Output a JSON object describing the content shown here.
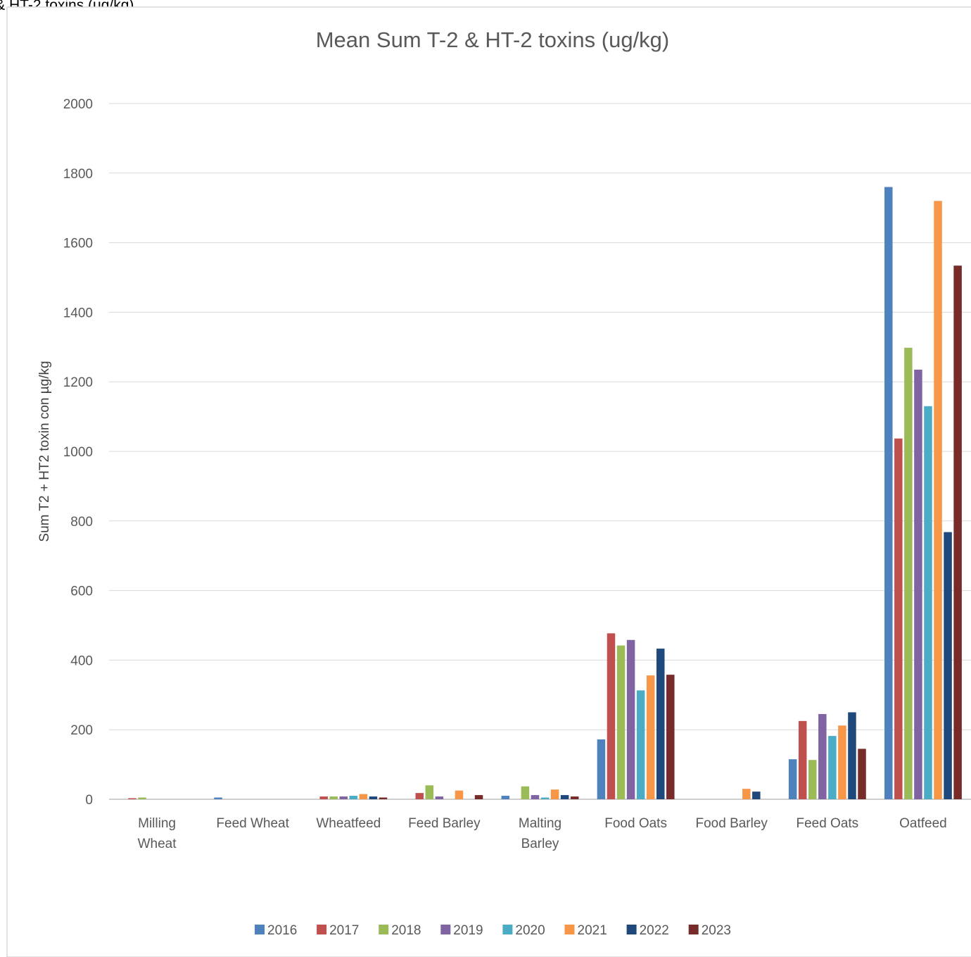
{
  "page": {
    "caption": "Mean Sum T-2 & HT-2 toxins (ug/kg)"
  },
  "chart_data": {
    "type": "bar",
    "title": "Mean Sum T-2 & HT-2 toxins (ug/kg)",
    "xlabel": "",
    "ylabel": "Sum T2 + HT2 toxin con µg/kg",
    "ylim": [
      0,
      2000
    ],
    "yticks": [
      0,
      200,
      400,
      600,
      800,
      1000,
      1200,
      1400,
      1600,
      1800,
      2000
    ],
    "grid": true,
    "legend_position": "bottom",
    "categories": [
      [
        "Milling",
        "Wheat"
      ],
      [
        "Feed Wheat"
      ],
      [
        "Wheatfeed"
      ],
      [
        "Feed Barley"
      ],
      [
        "Malting",
        "Barley"
      ],
      [
        "Food Oats"
      ],
      [
        "Food Barley"
      ],
      [
        "Feed Oats"
      ],
      [
        "Oatfeed"
      ]
    ],
    "series": [
      {
        "name": "2016",
        "color": "#4F81BD",
        "values": [
          0,
          5,
          0,
          0,
          10,
          172,
          0,
          115,
          1760
        ]
      },
      {
        "name": "2017",
        "color": "#C0504D",
        "values": [
          3,
          0,
          8,
          18,
          0,
          477,
          0,
          225,
          1037
        ]
      },
      {
        "name": "2018",
        "color": "#9BBB59",
        "values": [
          5,
          0,
          8,
          40,
          37,
          442,
          0,
          113,
          1298
        ]
      },
      {
        "name": "2019",
        "color": "#8064A2",
        "values": [
          0,
          0,
          8,
          8,
          12,
          458,
          0,
          245,
          1235
        ]
      },
      {
        "name": "2020",
        "color": "#4BACC6",
        "values": [
          0,
          0,
          10,
          0,
          5,
          313,
          0,
          182,
          1130
        ]
      },
      {
        "name": "2021",
        "color": "#F79646",
        "values": [
          0,
          0,
          15,
          25,
          28,
          356,
          30,
          212,
          1720
        ]
      },
      {
        "name": "2022",
        "color": "#1F497D",
        "values": [
          0,
          0,
          8,
          0,
          12,
          433,
          22,
          250,
          768
        ]
      },
      {
        "name": "2023",
        "color": "#772C2A",
        "values": [
          0,
          0,
          5,
          12,
          8,
          358,
          0,
          145,
          1534
        ]
      }
    ]
  },
  "colors": {
    "gridline": "#D9D9D9",
    "axis": "#BFBFBF",
    "frame": "#D9D9D9"
  }
}
